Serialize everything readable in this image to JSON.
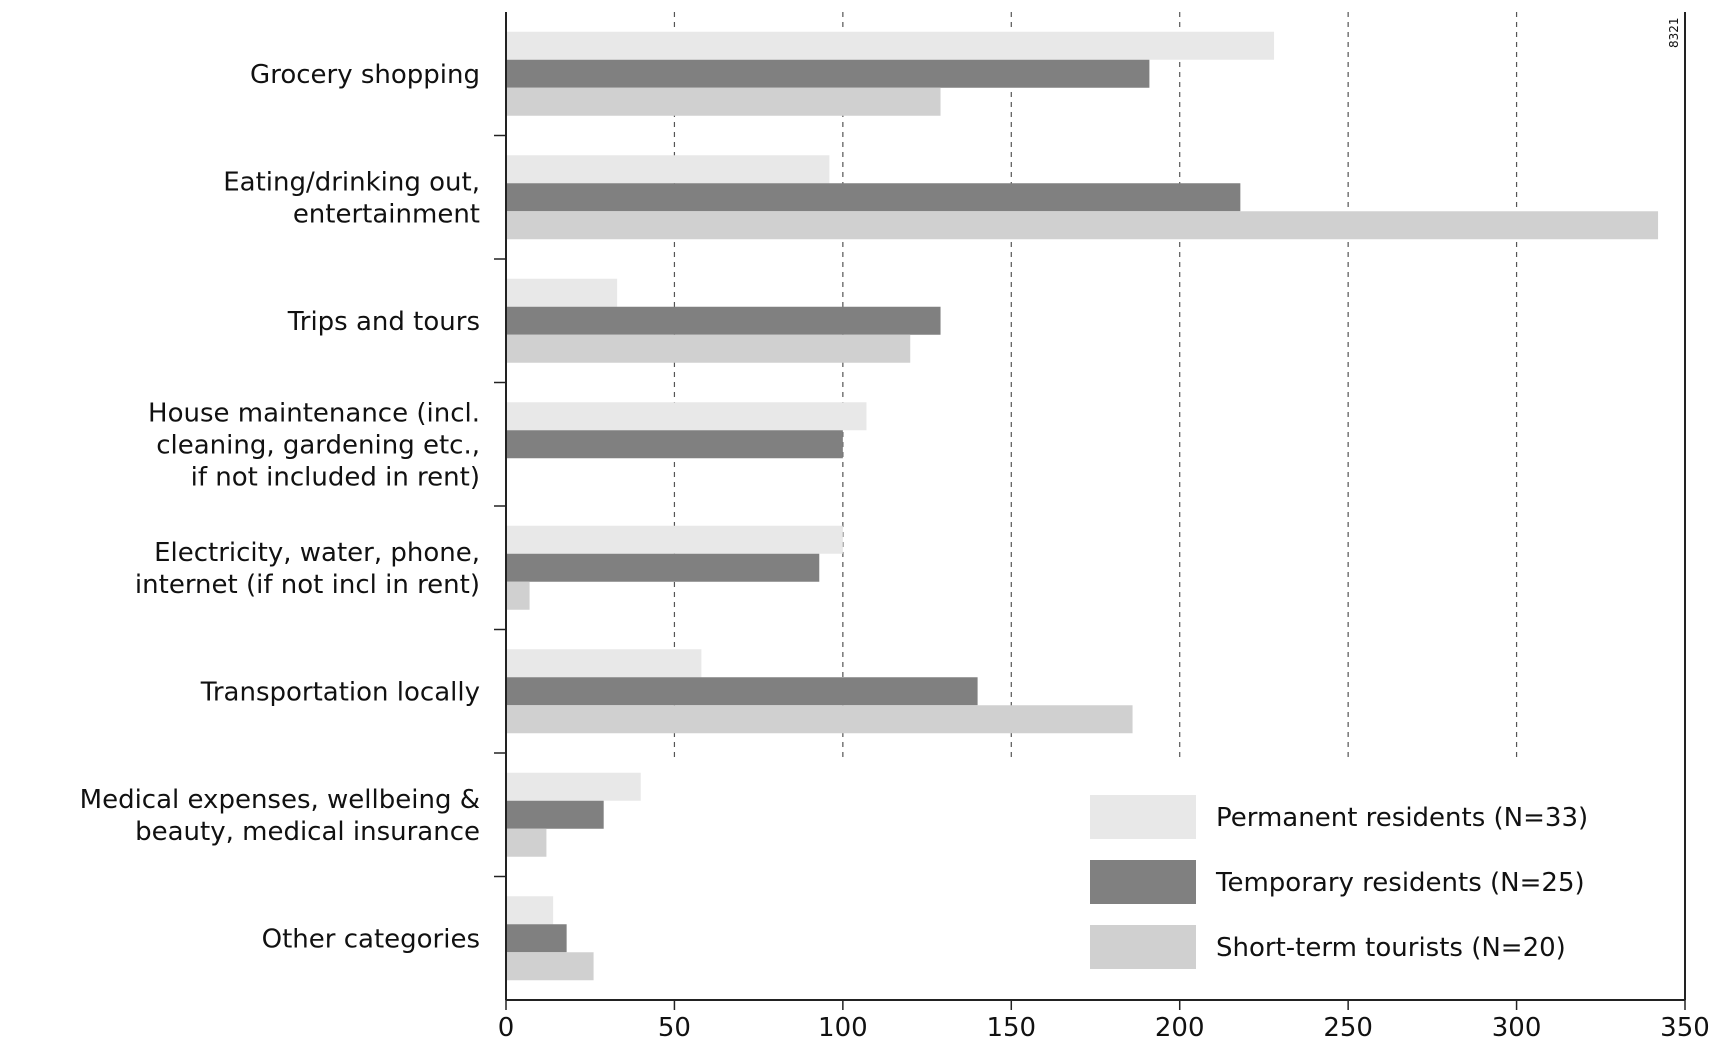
{
  "chart_data": {
    "type": "bar",
    "orientation": "horizontal",
    "categories": [
      "Grocery shopping",
      "Eating/drinking out,\nentertainment",
      "Trips and tours",
      "House maintenance (incl.\ncleaning, gardening etc.,\nif not included in rent)",
      "Electricity, water, phone,\ninternet (if not incl in rent)",
      "Transportation locally",
      "Medical expenses, wellbeing &\nbeauty, medical insurance",
      "Other categories"
    ],
    "series": [
      {
        "name": "Permanent residents (N=33)",
        "color": "#e8e8e8",
        "values": [
          228,
          96,
          33,
          107,
          100,
          58,
          40,
          14
        ]
      },
      {
        "name": "Temporary residents (N=25)",
        "color": "#808080",
        "values": [
          191,
          218,
          129,
          100,
          93,
          140,
          29,
          18
        ]
      },
      {
        "name": "Short-term tourists (N=20)",
        "color": "#d0d0d0",
        "values": [
          129,
          342,
          120,
          0,
          7,
          186,
          12,
          26
        ]
      }
    ],
    "xlim": [
      0,
      350
    ],
    "xticks": [
      0,
      50,
      100,
      150,
      200,
      250,
      300,
      350
    ],
    "grid": "vertical dashed lines at major ticks",
    "legend": "bottom-right",
    "code": "8321",
    "title": "",
    "xlabel": "",
    "ylabel": ""
  }
}
